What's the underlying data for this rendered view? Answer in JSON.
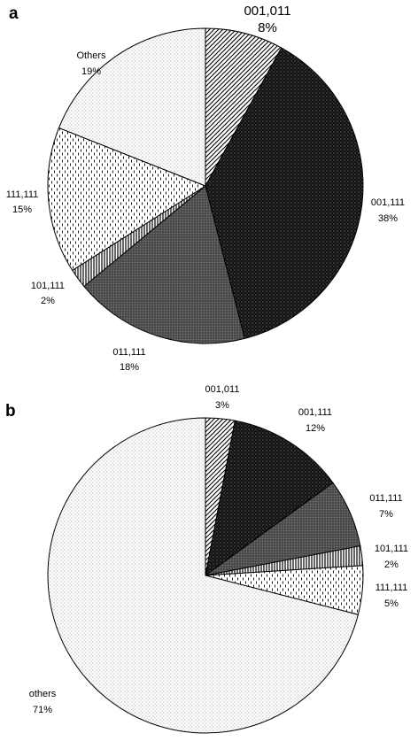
{
  "chart_data": [
    {
      "type": "pie",
      "panel": "a",
      "slices": [
        {
          "name": "001,011",
          "pct_label": "8%",
          "value": 8,
          "pattern": "diag"
        },
        {
          "name": "001,111",
          "pct_label": "38%",
          "value": 38,
          "pattern": "dark"
        },
        {
          "name": "011,111",
          "pct_label": "18%",
          "value": 18,
          "pattern": "gray"
        },
        {
          "name": "101,111",
          "pct_label": "2%",
          "value": 2,
          "pattern": "vlines"
        },
        {
          "name": "111,111",
          "pct_label": "15%",
          "value": 15,
          "pattern": "dashes"
        },
        {
          "name": "Others",
          "pct_label": "19%",
          "value": 19,
          "pattern": "dots"
        }
      ]
    },
    {
      "type": "pie",
      "panel": "b",
      "slices": [
        {
          "name": "001,011",
          "pct_label": "3%",
          "value": 3,
          "pattern": "diag"
        },
        {
          "name": "001,111",
          "pct_label": "12%",
          "value": 12,
          "pattern": "dark"
        },
        {
          "name": "011,111",
          "pct_label": "7%",
          "value": 7,
          "pattern": "gray"
        },
        {
          "name": "101,111",
          "pct_label": "2%",
          "value": 2,
          "pattern": "vlines"
        },
        {
          "name": "111,111",
          "pct_label": "5%",
          "value": 5,
          "pattern": "dashes"
        },
        {
          "name": "others",
          "pct_label": "71%",
          "value": 71,
          "pattern": "dots"
        }
      ]
    }
  ]
}
